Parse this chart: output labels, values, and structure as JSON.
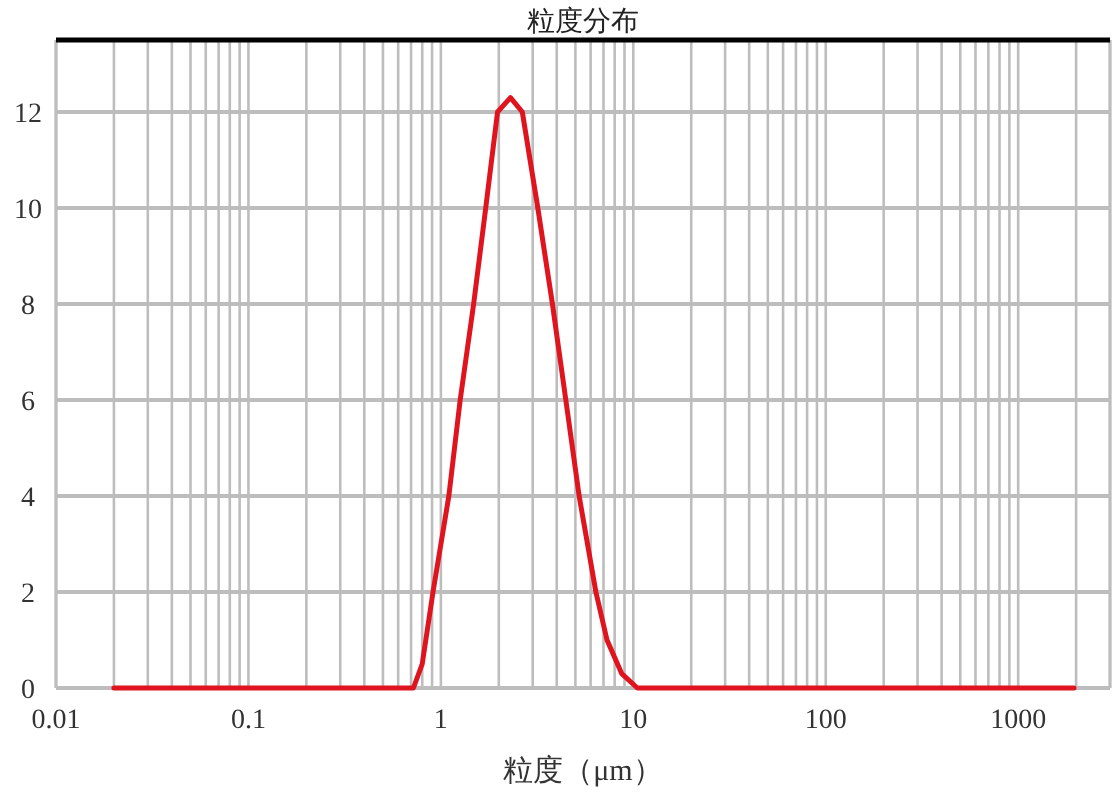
{
  "chart_data": {
    "type": "line",
    "title": "粒度分布",
    "xlabel": "粒度（μm）",
    "log": "x",
    "grid": true,
    "marker": "none",
    "line_style": "solid",
    "xlim": [
      0.01,
      3000
    ],
    "ylim": [
      0,
      13.5
    ],
    "xticks": [
      0.01,
      0.1,
      1,
      10,
      100,
      1000
    ],
    "yticks": [
      0,
      2,
      4,
      6,
      8,
      10,
      12
    ],
    "series": [
      {
        "color": "#e0141e",
        "x": [
          0.02,
          0.1,
          0.5,
          0.72,
          0.8,
          0.91,
          1.1,
          1.26,
          1.48,
          1.71,
          1.97,
          2.3,
          2.65,
          3.19,
          3.8,
          4.46,
          5.23,
          6.39,
          7.3,
          8.7,
          10.5,
          20,
          100,
          1000,
          1950
        ],
        "values": [
          0,
          0,
          0,
          0,
          0.5,
          2,
          4,
          6,
          8,
          10,
          12,
          12.3,
          12,
          10,
          8,
          6,
          4,
          2,
          1,
          0.3,
          0,
          0,
          0,
          0,
          0
        ]
      }
    ]
  }
}
